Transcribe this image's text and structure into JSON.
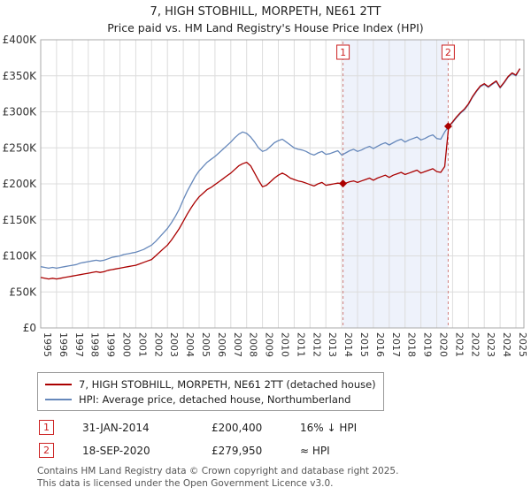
{
  "title": "7, HIGH STOBHILL, MORPETH, NE61 2TT",
  "subtitle": "Price paid vs. HM Land Registry's House Price Index (HPI)",
  "chart_data": {
    "type": "line",
    "x_start": 1995,
    "x_step": 0.25,
    "xlim": [
      1995,
      2025.5
    ],
    "ylim": [
      0,
      400
    ],
    "y_unit": "£K",
    "grid": true,
    "x_ticks": [
      1995,
      1996,
      1997,
      1998,
      1999,
      2000,
      2001,
      2002,
      2003,
      2004,
      2005,
      2006,
      2007,
      2008,
      2009,
      2010,
      2011,
      2012,
      2013,
      2014,
      2015,
      2016,
      2017,
      2018,
      2019,
      2020,
      2021,
      2022,
      2023,
      2024,
      2025
    ],
    "y_ticks": [
      0,
      50,
      100,
      150,
      200,
      250,
      300,
      350,
      400
    ],
    "y_tick_labels": [
      "£0",
      "£50K",
      "£100K",
      "£150K",
      "£200K",
      "£250K",
      "£300K",
      "£350K",
      "£400K"
    ],
    "series": [
      {
        "name": "7, HIGH STOBHILL, MORPETH, NE61 2TT (detached house)",
        "color": "#aa0000",
        "values": [
          70,
          69,
          68,
          69,
          68,
          69,
          70,
          71,
          72,
          73,
          74,
          75,
          76,
          77,
          78,
          77,
          78,
          80,
          81,
          82,
          83,
          84,
          85,
          86,
          87,
          89,
          91,
          93,
          95,
          100,
          105,
          110,
          115,
          122,
          130,
          138,
          148,
          158,
          167,
          175,
          182,
          187,
          192,
          195,
          199,
          203,
          207,
          211,
          215,
          220,
          225,
          228,
          230,
          225,
          215,
          205,
          196,
          198,
          203,
          208,
          212,
          215,
          212,
          208,
          206,
          204,
          203,
          201,
          199,
          197,
          200,
          202,
          198,
          199,
          200,
          201,
          200.4,
          201,
          203,
          204,
          202,
          204,
          206,
          208,
          205,
          208,
          210,
          212,
          209,
          212,
          214,
          216,
          213,
          215,
          217,
          219,
          215,
          217,
          219,
          221,
          217,
          216,
          224,
          280,
          286,
          293,
          299,
          304,
          311,
          321,
          329,
          336,
          339,
          335,
          339,
          343,
          334,
          341,
          349,
          354,
          351,
          360
        ]
      },
      {
        "name": "HPI: Average price, detached house, Northumberland",
        "color": "#6688bb",
        "values": [
          85,
          84,
          83,
          84,
          83,
          84,
          85,
          86,
          87,
          88,
          90,
          91,
          92,
          93,
          94,
          93,
          94,
          96,
          98,
          99,
          100,
          102,
          103,
          104,
          105,
          107,
          109,
          112,
          115,
          120,
          126,
          132,
          138,
          146,
          155,
          165,
          178,
          190,
          200,
          210,
          218,
          224,
          230,
          234,
          238,
          243,
          248,
          253,
          258,
          264,
          269,
          272,
          270,
          265,
          258,
          250,
          245,
          247,
          252,
          257,
          260,
          262,
          258,
          254,
          250,
          248,
          247,
          245,
          242,
          240,
          243,
          245,
          241,
          242,
          244,
          246,
          240,
          243,
          246,
          248,
          245,
          247,
          250,
          252,
          249,
          252,
          255,
          257,
          254,
          257,
          260,
          262,
          258,
          261,
          263,
          265,
          261,
          263,
          266,
          268,
          263,
          262,
          272,
          280,
          285,
          292,
          298,
          303,
          310,
          320,
          328,
          335,
          338,
          334,
          338,
          342,
          333,
          340,
          348,
          353,
          350,
          360
        ]
      }
    ],
    "sales": [
      {
        "n": "1",
        "x": 2014.08,
        "y": 200.4,
        "date": "31-JAN-2014",
        "price": "£200,400",
        "vs_hpi": "16% ↓ HPI"
      },
      {
        "n": "2",
        "x": 2020.72,
        "y": 279.95,
        "date": "18-SEP-2020",
        "price": "£279,950",
        "vs_hpi": "≈ HPI"
      }
    ],
    "shaded_region": {
      "from": 2014.08,
      "to": 2020.72,
      "color": "#eef2fb"
    }
  },
  "footer": {
    "line1": "Contains HM Land Registry data © Crown copyright and database right 2025.",
    "line2": "This data is licensed under the Open Government Licence v3.0."
  }
}
